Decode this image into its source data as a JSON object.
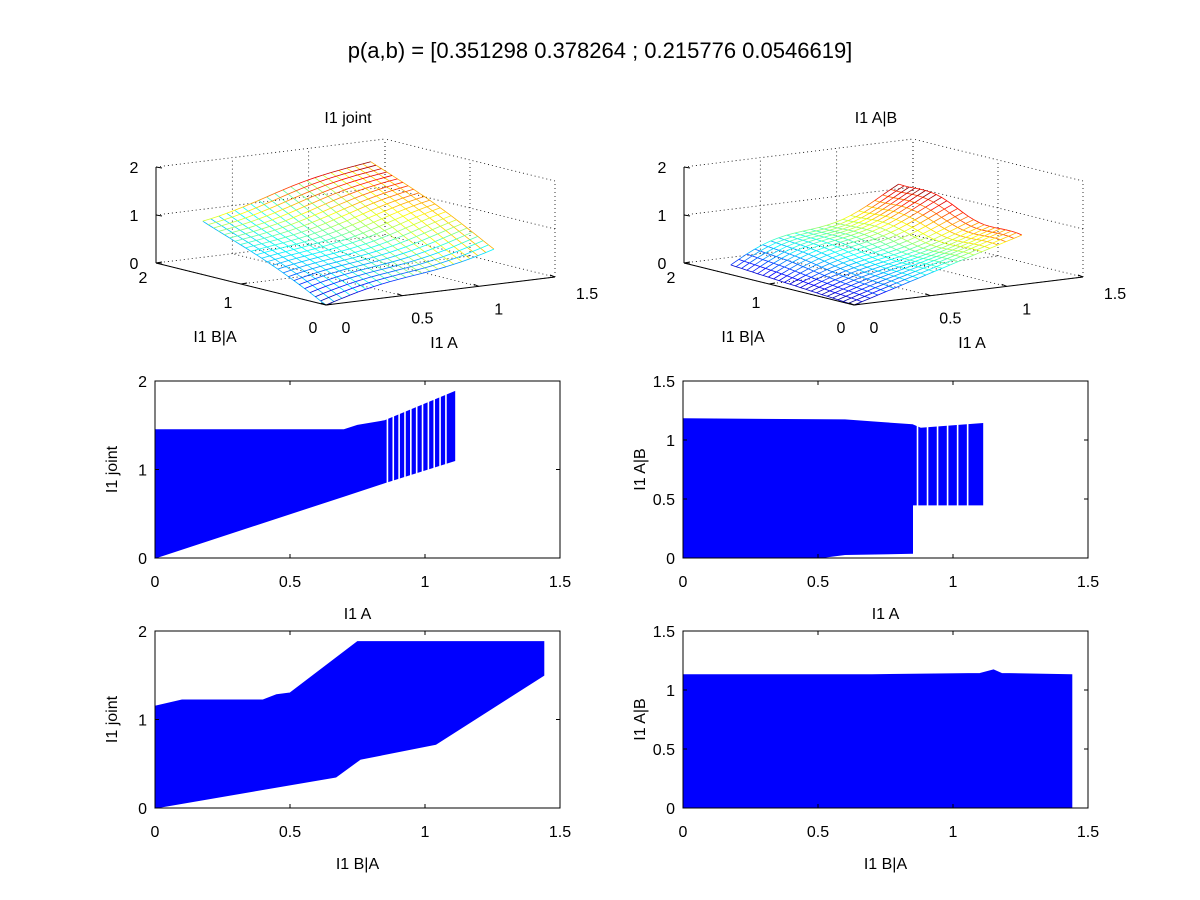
{
  "figure": {
    "suptitle": "p(a,b) = [0.351298 0.378264 ; 0.215776 0.0546619]"
  },
  "chart_data": [
    {
      "id": "surf-joint",
      "type": "surface",
      "title": "I1 joint",
      "xlabel": "I1 A",
      "ylabel": "I1 B|A",
      "zlabel": "",
      "xlim": [
        0,
        1.5
      ],
      "ylim": [
        0,
        2
      ],
      "zlim": [
        0,
        2
      ],
      "xticks": [
        "0",
        "0.5",
        "1",
        "1.5"
      ],
      "yticks": [
        "0",
        "1",
        "2"
      ],
      "zticks": [
        "0",
        "1",
        "2"
      ],
      "grid": true,
      "colormap": "jet",
      "corner_values": {
        "a0_b0": 0.0,
        "a1_b0": 0.75,
        "a0_b2": 1.15,
        "a1_b2": 1.95
      }
    },
    {
      "id": "surf-cond",
      "type": "surface",
      "title": "I1 A|B",
      "xlabel": "I1 A",
      "ylabel": "I1 B|A",
      "zlabel": "",
      "xlim": [
        0,
        1.5
      ],
      "ylim": [
        0,
        2
      ],
      "zlim": [
        0,
        2
      ],
      "xticks": [
        "0",
        "0.5",
        "1",
        "1.5"
      ],
      "yticks": [
        "0",
        "1",
        "2"
      ],
      "zticks": [
        "0",
        "1",
        "2"
      ],
      "grid": true,
      "colormap": "jet",
      "corner_values": {
        "a0_b0": 0.0,
        "a1_b0": 0.95,
        "a0_b2": 0.2,
        "a1_b2": 1.45
      }
    },
    {
      "id": "band-joint-vs-a",
      "type": "area",
      "title": "",
      "xlabel": "I1 A",
      "ylabel": "I1 joint",
      "xlim": [
        0,
        1.5
      ],
      "ylim": [
        0,
        2
      ],
      "xticks": [
        "0",
        "0.5",
        "1",
        "1.5"
      ],
      "yticks": [
        "0",
        "1",
        "2"
      ],
      "color": "#0000ff",
      "upper": [
        [
          0,
          1.45
        ],
        [
          0.7,
          1.45
        ],
        [
          0.75,
          1.5
        ],
        [
          0.85,
          1.55
        ],
        [
          1.11,
          1.88
        ]
      ],
      "lower": [
        [
          0,
          0.0
        ],
        [
          0.7,
          0.7
        ],
        [
          0.85,
          0.85
        ],
        [
          1.11,
          1.1
        ]
      ],
      "ribs": {
        "x_start": 0.85,
        "x_end": 1.11,
        "count": 12
      }
    },
    {
      "id": "band-cond-vs-a",
      "type": "area",
      "title": "",
      "xlabel": "I1 A",
      "ylabel": "I1 A|B",
      "xlim": [
        0,
        1.5
      ],
      "ylim": [
        0,
        1.5
      ],
      "xticks": [
        "0",
        "0.5",
        "1",
        "1.5"
      ],
      "yticks": [
        "0",
        "0.5",
        "1",
        "1.5"
      ],
      "color": "#0000ff",
      "upper": [
        [
          0,
          1.18
        ],
        [
          0.6,
          1.17
        ],
        [
          0.72,
          1.15
        ],
        [
          0.85,
          1.13
        ],
        [
          0.88,
          1.1
        ],
        [
          1.11,
          1.14
        ]
      ],
      "lower": [
        [
          0,
          0.0
        ],
        [
          0.25,
          0.0
        ],
        [
          0.5,
          0.0
        ],
        [
          0.6,
          0.03
        ],
        [
          0.85,
          0.04
        ],
        [
          0.85,
          0.45
        ],
        [
          1.11,
          0.45
        ]
      ],
      "ribs": {
        "x_start": 0.85,
        "x_end": 1.11,
        "count": 7
      }
    },
    {
      "id": "band-joint-vs-b",
      "type": "area",
      "title": "",
      "xlabel": "I1 B|A",
      "ylabel": "I1 joint",
      "xlim": [
        0,
        1.5
      ],
      "ylim": [
        0,
        2
      ],
      "xticks": [
        "0",
        "0.5",
        "1",
        "1.5"
      ],
      "yticks": [
        "0",
        "1",
        "2"
      ],
      "color": "#0000ff",
      "upper": [
        [
          0,
          1.15
        ],
        [
          0.1,
          1.22
        ],
        [
          0.4,
          1.22
        ],
        [
          0.45,
          1.28
        ],
        [
          0.5,
          1.3
        ],
        [
          0.75,
          1.88
        ],
        [
          1.44,
          1.88
        ]
      ],
      "lower": [
        [
          0,
          0.0
        ],
        [
          0.67,
          0.35
        ],
        [
          0.76,
          0.55
        ],
        [
          1.04,
          0.72
        ],
        [
          1.44,
          1.5
        ]
      ],
      "ribs": null
    },
    {
      "id": "band-cond-vs-b",
      "type": "area",
      "title": "",
      "xlabel": "I1 B|A",
      "ylabel": "I1 A|B",
      "xlim": [
        0,
        1.5
      ],
      "ylim": [
        0,
        1.5
      ],
      "xticks": [
        "0",
        "0.5",
        "1",
        "1.5"
      ],
      "yticks": [
        "0",
        "0.5",
        "1",
        "1.5"
      ],
      "color": "#0000ff",
      "upper": [
        [
          0,
          1.13
        ],
        [
          0.7,
          1.13
        ],
        [
          1.1,
          1.14
        ],
        [
          1.15,
          1.17
        ],
        [
          1.18,
          1.14
        ],
        [
          1.44,
          1.13
        ]
      ],
      "lower": [
        [
          0,
          0.0
        ],
        [
          1.44,
          0.0
        ]
      ],
      "ribs": null
    }
  ]
}
